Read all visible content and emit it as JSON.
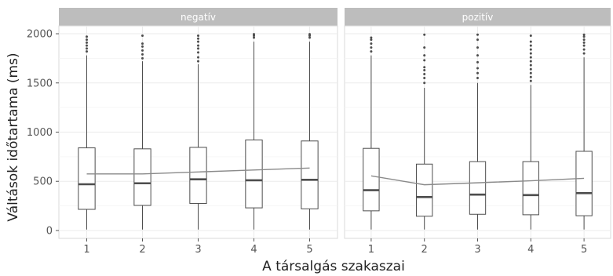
{
  "chart_data": {
    "type": "boxplot",
    "xlabel": "A társalgás szakaszai",
    "ylabel": "Váltások időtartama (ms)",
    "categories": [
      "1",
      "2",
      "3",
      "4",
      "5"
    ],
    "y_ticks": [
      0,
      500,
      1000,
      1500,
      2000
    ],
    "ylim": [
      -80,
      2080
    ],
    "grid": true,
    "colors": {
      "strip": "#bdbdbd",
      "box": "#4d4d4d",
      "median": "#4d4d4d",
      "mean_line": "#8a8a8a",
      "grid": "#ebebeb",
      "frame": "#d9d9d9"
    },
    "panels": [
      {
        "label": "negatív",
        "boxes": [
          {
            "x": "1",
            "lower_whisker": 10,
            "q1": 215,
            "median": 470,
            "q3": 840,
            "upper_whisker": 1780,
            "outliers": [
              1820,
              1850,
              1880,
              1910,
              1940,
              1970
            ]
          },
          {
            "x": "2",
            "lower_whisker": 10,
            "q1": 255,
            "median": 480,
            "q3": 830,
            "upper_whisker": 1720,
            "outliers": [
              1750,
              1790,
              1830,
              1870,
              1900,
              1980
            ]
          },
          {
            "x": "3",
            "lower_whisker": 10,
            "q1": 275,
            "median": 520,
            "q3": 845,
            "upper_whisker": 1690,
            "outliers": [
              1720,
              1760,
              1810,
              1850,
              1880,
              1920,
              1950,
              1980
            ]
          },
          {
            "x": "4",
            "lower_whisker": 10,
            "q1": 230,
            "median": 510,
            "q3": 920,
            "upper_whisker": 1920,
            "outliers": [
              1960,
              1980,
              1995
            ]
          },
          {
            "x": "5",
            "lower_whisker": 10,
            "q1": 220,
            "median": 515,
            "q3": 910,
            "upper_whisker": 1920,
            "outliers": [
              1960,
              1980,
              1995
            ]
          }
        ],
        "mean_line": [
          575,
          575,
          595,
          615,
          635
        ]
      },
      {
        "label": "pozitív",
        "boxes": [
          {
            "x": "1",
            "lower_whisker": 10,
            "q1": 200,
            "median": 410,
            "q3": 835,
            "upper_whisker": 1780,
            "outliers": [
              1820,
              1860,
              1900,
              1940,
              1960
            ]
          },
          {
            "x": "2",
            "lower_whisker": 10,
            "q1": 145,
            "median": 340,
            "q3": 675,
            "upper_whisker": 1450,
            "outliers": [
              1500,
              1550,
              1590,
              1630,
              1660,
              1730,
              1780,
              1860,
              1990
            ]
          },
          {
            "x": "3",
            "lower_whisker": 10,
            "q1": 165,
            "median": 365,
            "q3": 700,
            "upper_whisker": 1500,
            "outliers": [
              1550,
              1600,
              1650,
              1710,
              1780,
              1860,
              1940,
              1990
            ]
          },
          {
            "x": "4",
            "lower_whisker": 10,
            "q1": 160,
            "median": 360,
            "q3": 700,
            "upper_whisker": 1480,
            "outliers": [
              1520,
              1560,
              1600,
              1640,
              1680,
              1720,
              1760,
              1800,
              1840,
              1880,
              1920,
              1980
            ]
          },
          {
            "x": "5",
            "lower_whisker": 10,
            "q1": 150,
            "median": 380,
            "q3": 805,
            "upper_whisker": 1760,
            "outliers": [
              1800,
              1840,
              1880,
              1910,
              1940,
              1970,
              1990
            ]
          }
        ],
        "mean_line": [
          555,
          465,
          485,
          505,
          530
        ]
      }
    ]
  }
}
